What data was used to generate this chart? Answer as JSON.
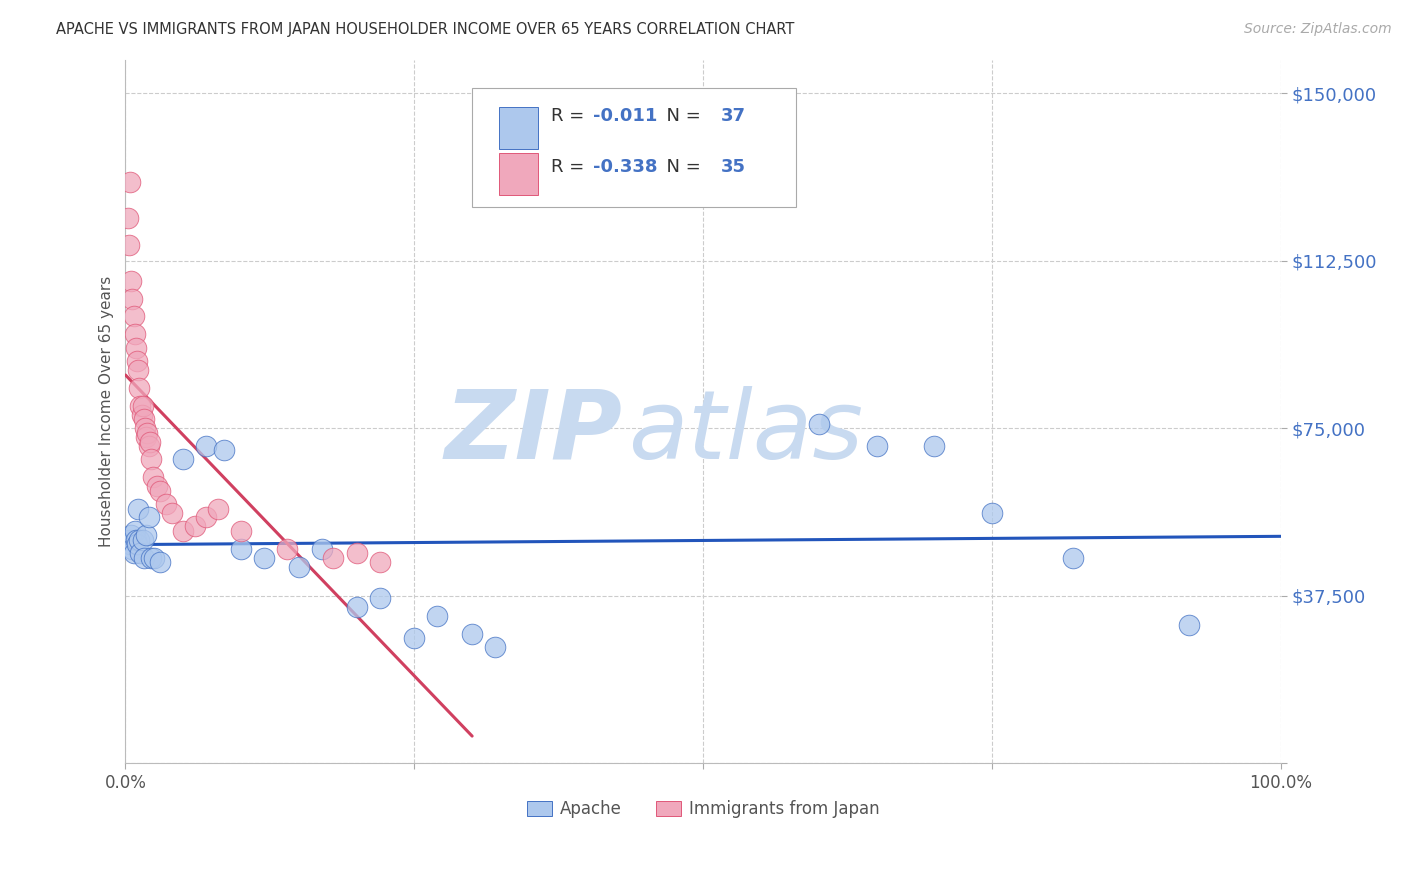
{
  "title": "APACHE VS IMMIGRANTS FROM JAPAN HOUSEHOLDER INCOME OVER 65 YEARS CORRELATION CHART",
  "source": "Source: ZipAtlas.com",
  "ylabel": "Householder Income Over 65 years",
  "xlim": [
    0,
    100
  ],
  "ylim": [
    0,
    157500
  ],
  "yticks": [
    0,
    37500,
    75000,
    112500,
    150000
  ],
  "ytick_labels": [
    "",
    "$37,500",
    "$75,000",
    "$112,500",
    "$150,000"
  ],
  "xtick_positions": [
    0,
    25,
    50,
    75,
    100
  ],
  "xtick_labels": [
    "0.0%",
    "",
    "",
    "",
    "100.0%"
  ],
  "legend_apache_R": "-0.011",
  "legend_apache_N": "37",
  "legend_japan_R": "-0.338",
  "legend_japan_N": "35",
  "apache_color": "#adc8ed",
  "japan_color": "#f0a8bc",
  "apache_edge_color": "#4472c4",
  "japan_edge_color": "#e05878",
  "apache_line_color": "#2255bb",
  "japan_line_color": "#d04060",
  "label_color": "#4472c4",
  "watermark_zip": "ZIP",
  "watermark_atlas": "atlas",
  "watermark_color": "#c8daf0",
  "apache_x": [
    0.3,
    0.4,
    0.5,
    0.6,
    0.7,
    0.8,
    0.9,
    1.0,
    1.1,
    1.2,
    1.3,
    1.5,
    1.6,
    1.8,
    2.0,
    2.2,
    2.5,
    3.0,
    5.0,
    7.0,
    8.5,
    10.0,
    12.0,
    15.0,
    17.0,
    20.0,
    22.0,
    25.0,
    27.0,
    30.0,
    32.0,
    60.0,
    65.0,
    70.0,
    75.0,
    82.0,
    92.0
  ],
  "apache_y": [
    50000,
    49000,
    51000,
    48000,
    47000,
    52000,
    50000,
    49000,
    57000,
    50000,
    47000,
    50000,
    46000,
    51000,
    55000,
    46000,
    46000,
    45000,
    68000,
    71000,
    70000,
    48000,
    46000,
    44000,
    48000,
    35000,
    37000,
    28000,
    33000,
    29000,
    26000,
    76000,
    71000,
    71000,
    56000,
    46000,
    31000
  ],
  "japan_x": [
    0.2,
    0.3,
    0.4,
    0.5,
    0.6,
    0.7,
    0.8,
    0.9,
    1.0,
    1.1,
    1.2,
    1.3,
    1.4,
    1.5,
    1.6,
    1.7,
    1.8,
    1.9,
    2.0,
    2.1,
    2.2,
    2.4,
    2.7,
    3.0,
    3.5,
    4.0,
    5.0,
    6.0,
    7.0,
    8.0,
    10.0,
    14.0,
    18.0,
    20.0,
    22.0
  ],
  "japan_y": [
    122000,
    116000,
    130000,
    108000,
    104000,
    100000,
    96000,
    93000,
    90000,
    88000,
    84000,
    80000,
    78000,
    80000,
    77000,
    75000,
    73000,
    74000,
    71000,
    72000,
    68000,
    64000,
    62000,
    61000,
    58000,
    56000,
    52000,
    53000,
    55000,
    57000,
    52000,
    48000,
    46000,
    47000,
    45000
  ],
  "background_color": "#ffffff",
  "grid_color": "#cccccc",
  "japan_line_x_end": 30.0,
  "apache_line_x_start": 0.0,
  "apache_line_x_end": 100.0
}
